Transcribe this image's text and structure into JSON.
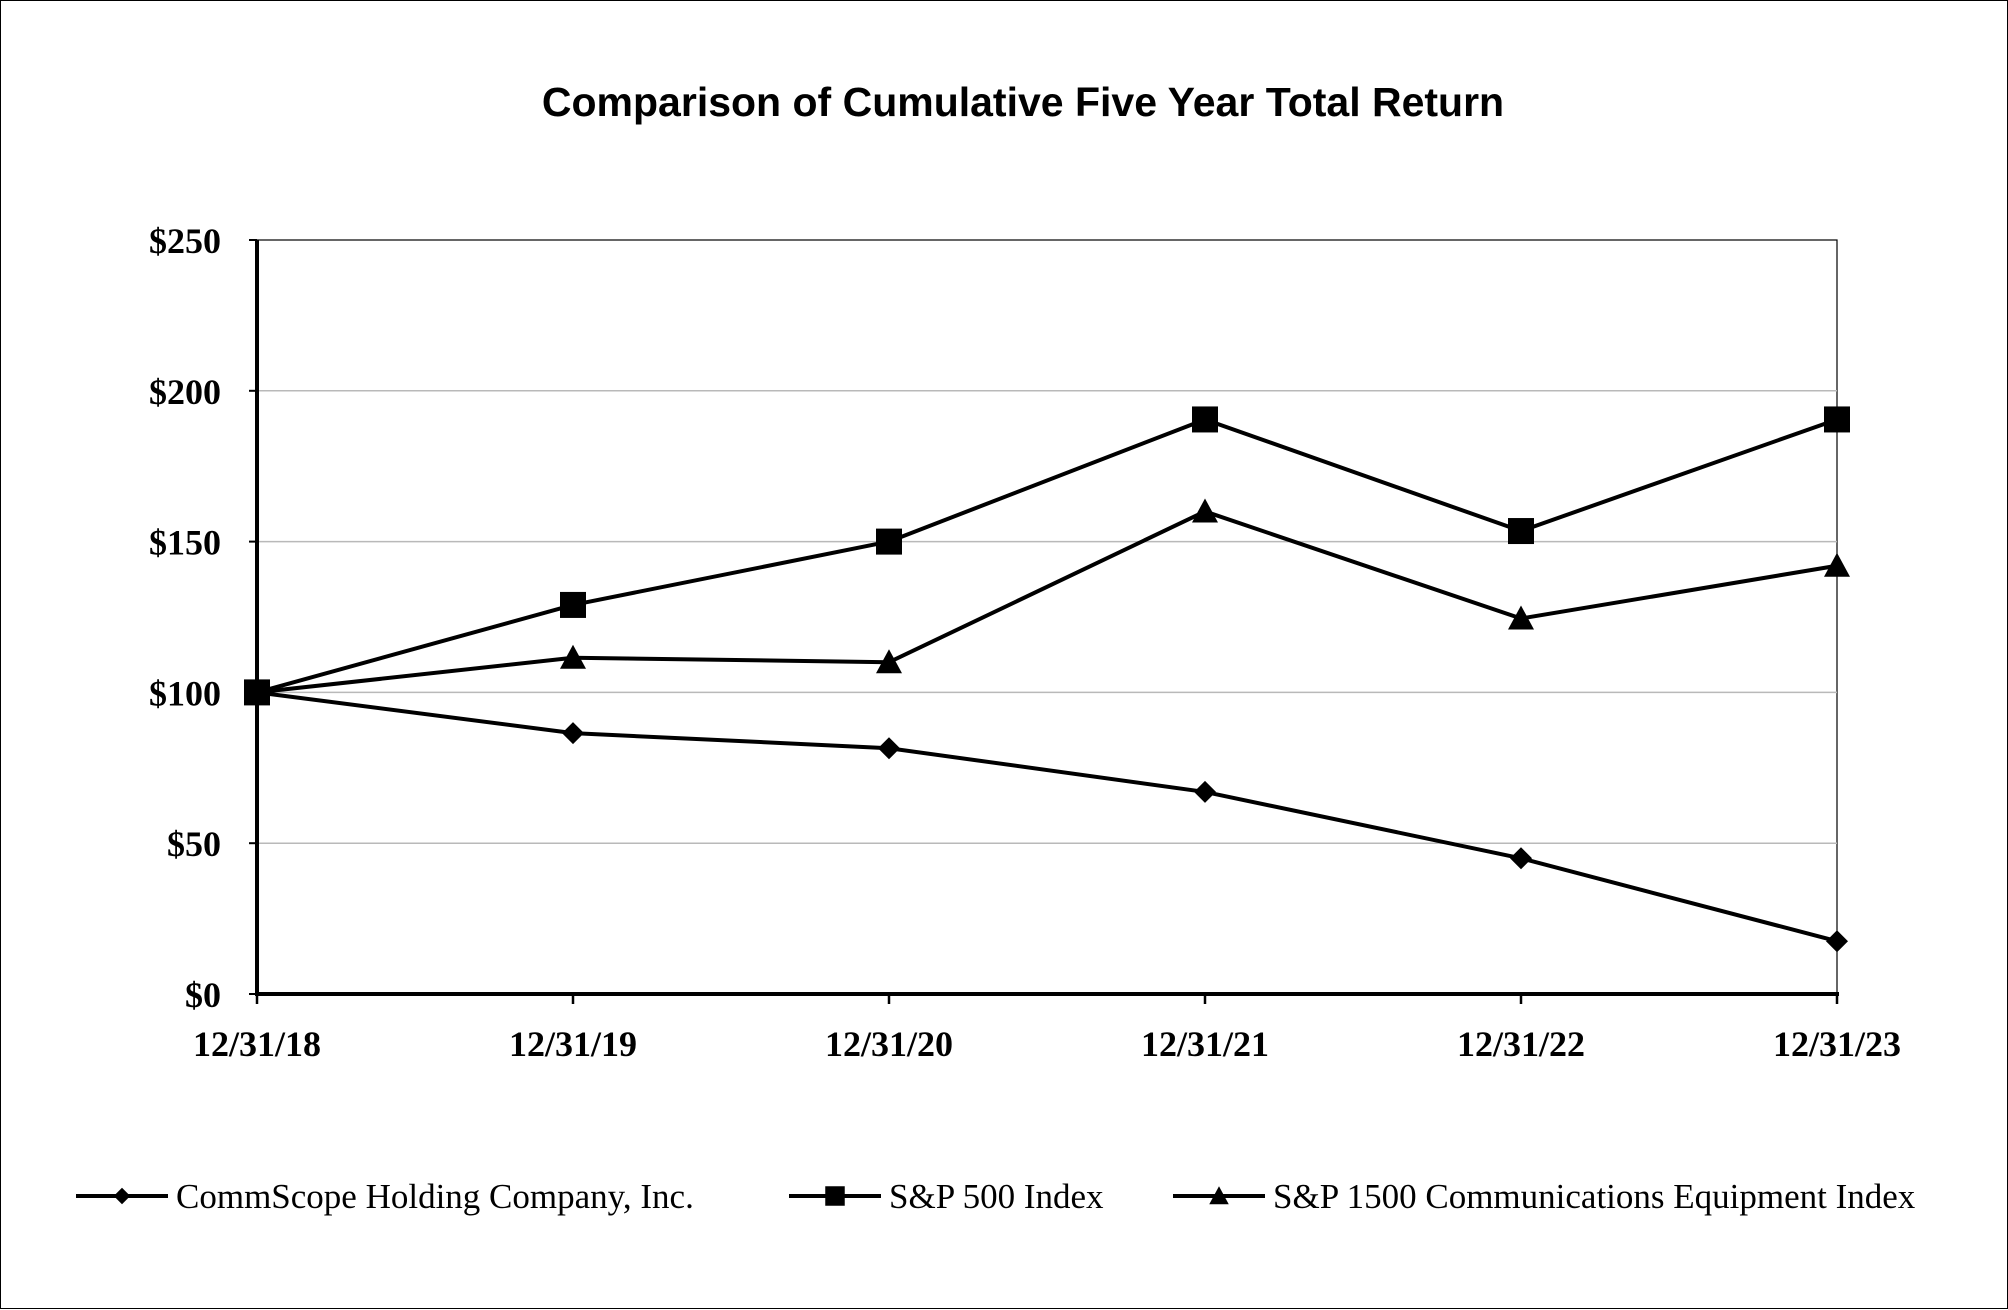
{
  "chart_data": {
    "type": "line",
    "title": "Comparison of Cumulative Five Year Total Return",
    "xlabel": "",
    "ylabel": "",
    "categories": [
      "12/31/18",
      "12/31/19",
      "12/31/20",
      "12/31/21",
      "12/31/22",
      "12/31/23"
    ],
    "y_ticks": [
      "$0",
      "$50",
      "$100",
      "$150",
      "$200",
      "$250"
    ],
    "y_tick_values": [
      0,
      50,
      100,
      150,
      200,
      250
    ],
    "ylim": [
      0,
      250
    ],
    "grid": true,
    "legend_position": "bottom",
    "series": [
      {
        "name": "CommScope Holding Company, Inc.",
        "marker": "diamond",
        "color": "#000000",
        "values": [
          100,
          86.5,
          81.5,
          67,
          45,
          17.5
        ]
      },
      {
        "name": "S&P 500 Index",
        "marker": "square",
        "color": "#000000",
        "values": [
          100,
          129,
          150,
          190.5,
          153.5,
          190.5
        ]
      },
      {
        "name": "S&P 1500 Communications Equipment Index",
        "marker": "triangle",
        "color": "#000000",
        "values": [
          100,
          111.5,
          110,
          160,
          124.5,
          142
        ]
      }
    ]
  }
}
